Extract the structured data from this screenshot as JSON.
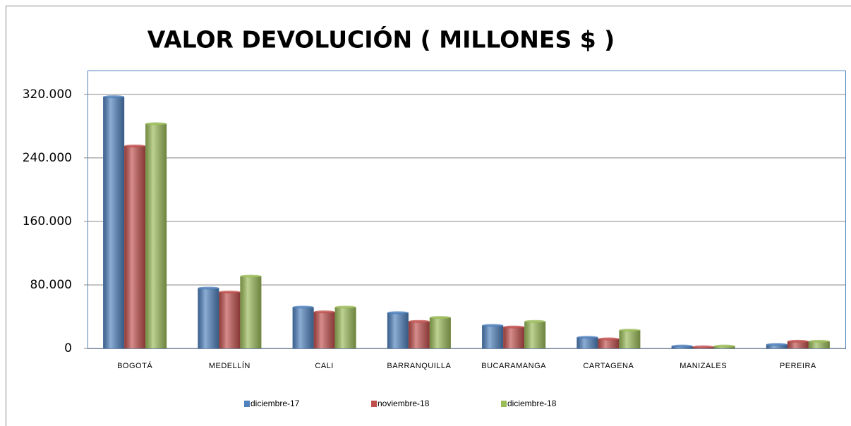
{
  "chart_data": {
    "type": "bar",
    "title": "VALOR DEVOLUCIÓN ( MILLONES $ )",
    "categories": [
      "BOGOTÁ",
      "MEDELLÍN",
      "CALI",
      "BARRANQUILLA",
      "BUCARAMANGA",
      "CARTAGENA",
      "MANIZALES",
      "PEREIRA"
    ],
    "series": [
      {
        "name": "diciembre-17",
        "color": "#4f81bd",
        "values": [
          317000,
          76000,
          52000,
          45000,
          29000,
          14000,
          3000,
          5000
        ]
      },
      {
        "name": "noviembre-18",
        "color": "#c0504d",
        "values": [
          255000,
          71000,
          46000,
          34000,
          27000,
          12000,
          2000,
          9000
        ]
      },
      {
        "name": "diciembre-18",
        "color": "#9bbb59",
        "values": [
          283000,
          91000,
          52000,
          39000,
          34000,
          23000,
          3000,
          9000
        ]
      }
    ],
    "ylim": [
      0,
      350000
    ],
    "yticks": [
      0,
      {
        "value": 80000,
        "label": "80.000"
      },
      {
        "value": 160000,
        "label": "160.000"
      },
      {
        "value": 240000,
        "label": "240.000"
      },
      {
        "value": 320000,
        "label": "320.000"
      }
    ],
    "grid": true,
    "legend": "bottom"
  }
}
